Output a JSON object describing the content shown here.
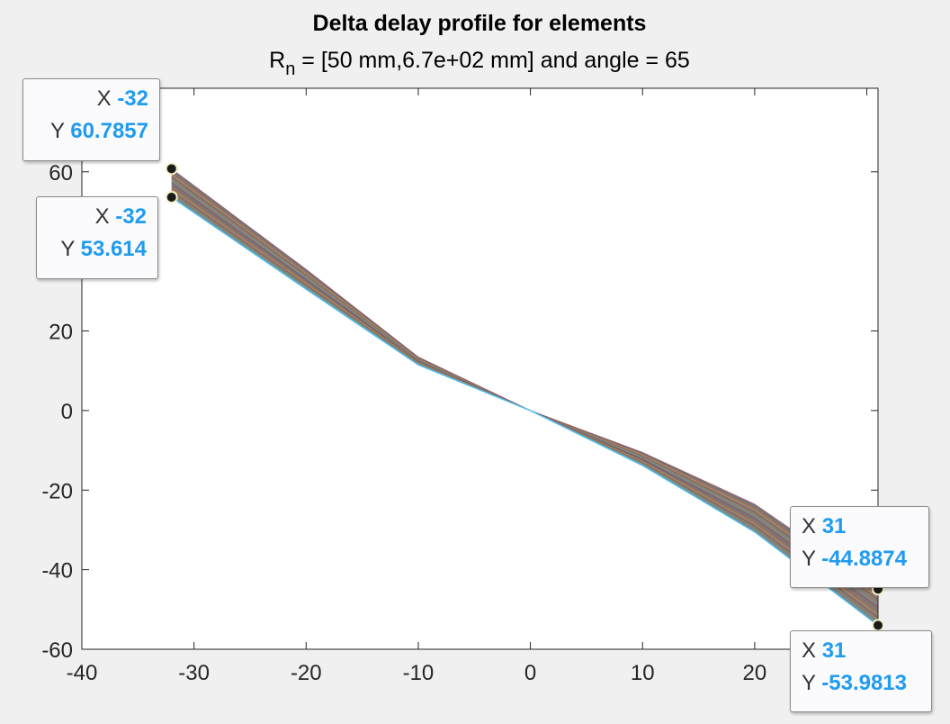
{
  "chart_data": {
    "type": "area",
    "title": "Delta delay profile for elements",
    "subtitle_main": "R",
    "subtitle_sub": "n",
    "subtitle_rest": " = [50 mm,6.7e+02 mm] and angle = 65",
    "xlabel": "",
    "ylabel": "",
    "xlim": [
      -40,
      31
    ],
    "ylim": [
      -60,
      81
    ],
    "xticks": [
      -40,
      -30,
      -20,
      -10,
      0,
      10,
      20,
      30
    ],
    "yticks": [
      -60,
      -40,
      -20,
      0,
      20,
      60
    ],
    "grid": false,
    "band": {
      "x": [
        -32,
        -20,
        -10,
        0,
        10,
        20,
        31
      ],
      "upper": [
        60.7857,
        35.5,
        13.5,
        0,
        -10.5,
        -23.5,
        -44.8874
      ],
      "lower": [
        53.614,
        30.5,
        11.5,
        0,
        -13.8,
        -30.5,
        -53.9813
      ]
    },
    "band_colors": [
      "#a2142f",
      "#4dbeee",
      "#77ac30",
      "#7e2f8e",
      "#edb120",
      "#d95319",
      "#0072bd"
    ],
    "band_base_color": "#8a7a72",
    "datatips": [
      {
        "x_label": "X",
        "x_value": "-32",
        "y_label": "Y",
        "y_value": "60.7857",
        "x": -32,
        "y": 60.7857
      },
      {
        "x_label": "X",
        "x_value": "-32",
        "y_label": "Y",
        "y_value": "53.614",
        "x": -32,
        "y": 53.614
      },
      {
        "x_label": "X",
        "x_value": "31",
        "y_label": "Y",
        "y_value": "-44.8874",
        "x": 31,
        "y": -44.8874
      },
      {
        "x_label": "X",
        "x_value": "31",
        "y_label": "Y",
        "y_value": "-53.9813",
        "x": 31,
        "y": -53.9813
      }
    ]
  }
}
